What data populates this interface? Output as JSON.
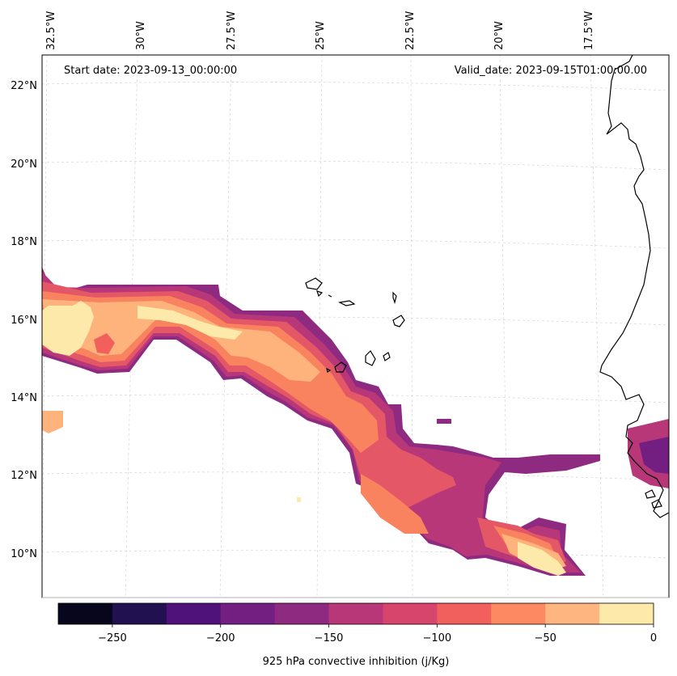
{
  "header": {
    "start_date": "Start date: 2023-09-13_00:00:00",
    "valid_date": "Valid_date: 2023-09-15T01:00:00.00"
  },
  "longitude_labels": [
    "32.5°W",
    "30°W",
    "27.5°W",
    "25°W",
    "22.5°W",
    "20°W",
    "17.5°W"
  ],
  "latitude_labels": [
    "22°N",
    "20°N",
    "18°N",
    "16°N",
    "14°N",
    "12°N",
    "10°N"
  ],
  "colorbar": {
    "label": "925 hPa convective inhibition (j/Kg)",
    "tick_labels": [
      "−250",
      "−200",
      "−150",
      "−100",
      "−50",
      "0"
    ],
    "levels": [
      -275,
      -250,
      -225,
      -200,
      -175,
      -150,
      -125,
      -100,
      -75,
      -50,
      -25,
      0
    ],
    "colors": [
      "#07061c",
      "#221150",
      "#4f127b",
      "#721f81",
      "#8f2a81",
      "#b73779",
      "#d8456c",
      "#f1605d",
      "#fc8961",
      "#feb57f",
      "#fde9a9"
    ]
  },
  "colors": {
    "coastline": "#000000",
    "gridline": "#d0d0d0"
  }
}
